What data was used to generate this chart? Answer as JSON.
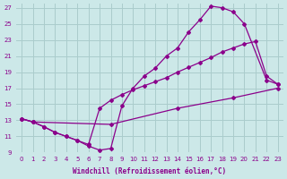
{
  "xlabel": "Windchill (Refroidissement éolien,°C)",
  "background_color": "#cce8e8",
  "grid_color": "#aacccc",
  "line_color": "#8b008b",
  "xlim": [
    -0.5,
    23.5
  ],
  "ylim": [
    9,
    27.5
  ],
  "yticks": [
    9,
    11,
    13,
    15,
    17,
    19,
    21,
    23,
    25,
    27
  ],
  "xticks": [
    0,
    1,
    2,
    3,
    4,
    5,
    6,
    7,
    8,
    9,
    10,
    11,
    12,
    13,
    14,
    15,
    16,
    17,
    18,
    19,
    20,
    21,
    22,
    23
  ],
  "line1_x": [
    0,
    1,
    2,
    3,
    4,
    5,
    6,
    7,
    8,
    9,
    10,
    11,
    12,
    13,
    14,
    15,
    16,
    17,
    18,
    19,
    20,
    22,
    23
  ],
  "line1_y": [
    13.2,
    12.8,
    12.2,
    11.5,
    11.0,
    10.5,
    9.8,
    9.3,
    9.5,
    14.8,
    17.0,
    18.5,
    19.5,
    21.0,
    22.0,
    24.0,
    25.5,
    27.2,
    27.0,
    26.5,
    25.0,
    18.0,
    17.5
  ],
  "line2_x": [
    0,
    1,
    2,
    3,
    4,
    5,
    6,
    7,
    8,
    9,
    10,
    11,
    12,
    13,
    14,
    15,
    16,
    17,
    18,
    19,
    20,
    21,
    22,
    23
  ],
  "line2_y": [
    13.2,
    12.8,
    12.2,
    11.5,
    11.0,
    10.5,
    10.0,
    14.5,
    15.5,
    16.2,
    16.8,
    17.3,
    17.8,
    18.3,
    19.0,
    19.6,
    20.2,
    20.8,
    21.5,
    22.0,
    22.5,
    22.8,
    18.5,
    17.5
  ],
  "line3_x": [
    0,
    1,
    8,
    14,
    19,
    23
  ],
  "line3_y": [
    13.2,
    12.8,
    12.5,
    14.5,
    15.8,
    17.0
  ]
}
